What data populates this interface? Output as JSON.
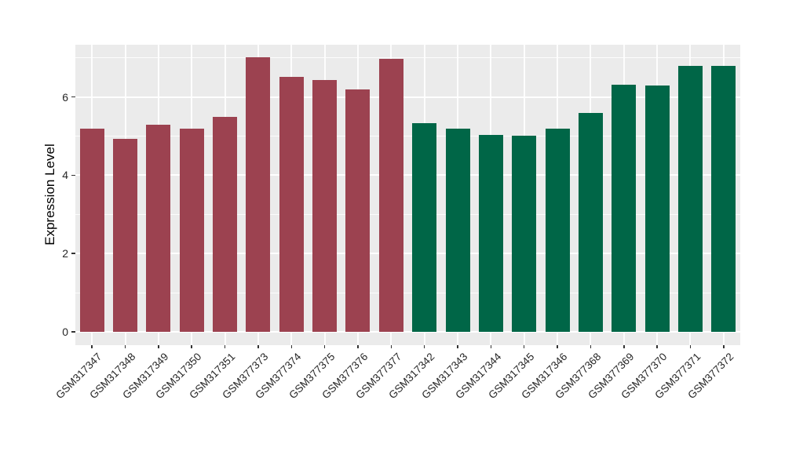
{
  "chart_data": {
    "type": "bar",
    "title": "",
    "xlabel": "",
    "ylabel": "Expression Level",
    "y_ticks": [
      0,
      2,
      4,
      6
    ],
    "y_minor_ticks": [
      1,
      3,
      5,
      7
    ],
    "ylim": [
      -0.35,
      7.33
    ],
    "grid": "on",
    "legend": "none",
    "panel_background": "#EBEBEB",
    "gridline_color": "#FFFFFF",
    "categories": [
      "GSM317347",
      "GSM317348",
      "GSM317349",
      "GSM317350",
      "GSM317351",
      "GSM377373",
      "GSM377374",
      "GSM377375",
      "GSM377376",
      "GSM377377",
      "GSM317342",
      "GSM317343",
      "GSM317344",
      "GSM317345",
      "GSM317346",
      "GSM377368",
      "GSM377369",
      "GSM377370",
      "GSM377371",
      "GSM377372"
    ],
    "values": [
      5.2,
      4.93,
      5.3,
      5.2,
      5.5,
      7.01,
      6.52,
      6.43,
      6.2,
      6.97,
      5.33,
      5.2,
      5.03,
      5.01,
      5.2,
      5.59,
      6.32,
      6.29,
      6.79,
      6.79
    ],
    "groups": [
      "group1",
      "group1",
      "group1",
      "group1",
      "group1",
      "group1",
      "group1",
      "group1",
      "group1",
      "group1",
      "group2",
      "group2",
      "group2",
      "group2",
      "group2",
      "group2",
      "group2",
      "group2",
      "group2",
      "group2"
    ],
    "group_colors": {
      "group1": "#9C4250",
      "group2": "#006647"
    }
  }
}
